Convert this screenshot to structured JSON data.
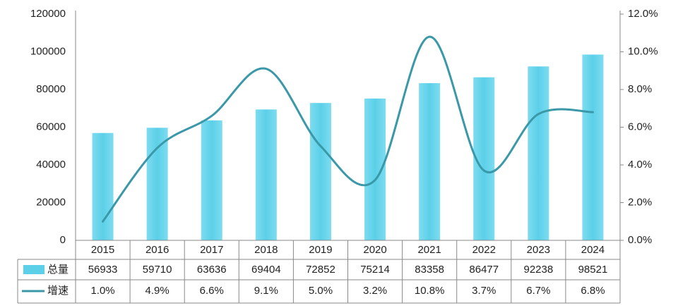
{
  "chart_data": {
    "type": "bar+line",
    "categories": [
      "2015",
      "2016",
      "2017",
      "2018",
      "2019",
      "2020",
      "2021",
      "2022",
      "2023",
      "2024"
    ],
    "series": [
      {
        "name": "总量",
        "type": "bar",
        "axis": "left",
        "values": [
          56933,
          59710,
          63636,
          69404,
          72852,
          75214,
          83358,
          86477,
          92238,
          98521
        ],
        "labels": [
          "56933",
          "59710",
          "63636",
          "69404",
          "72852",
          "75214",
          "83358",
          "86477",
          "92238",
          "98521"
        ],
        "color": "#5bd0e8"
      },
      {
        "name": "增速",
        "type": "line",
        "axis": "right",
        "values": [
          1.0,
          4.9,
          6.6,
          9.1,
          5.0,
          3.2,
          10.8,
          3.7,
          6.7,
          6.8
        ],
        "labels": [
          "1.0%",
          "4.9%",
          "6.6%",
          "9.1%",
          "5.0%",
          "3.2%",
          "10.8%",
          "3.7%",
          "6.7%",
          "6.8%"
        ],
        "color": "#3a98a8"
      }
    ],
    "y_left": {
      "ylim": [
        0,
        120000
      ],
      "ticks": [
        "0",
        "20000",
        "40000",
        "60000",
        "80000",
        "100000",
        "120000"
      ]
    },
    "y_right": {
      "ylim": [
        0,
        12
      ],
      "ticks": [
        "0.0%",
        "2.0%",
        "4.0%",
        "6.0%",
        "8.0%",
        "10.0%",
        "12.0%"
      ]
    },
    "grid": false,
    "data_table": true
  }
}
